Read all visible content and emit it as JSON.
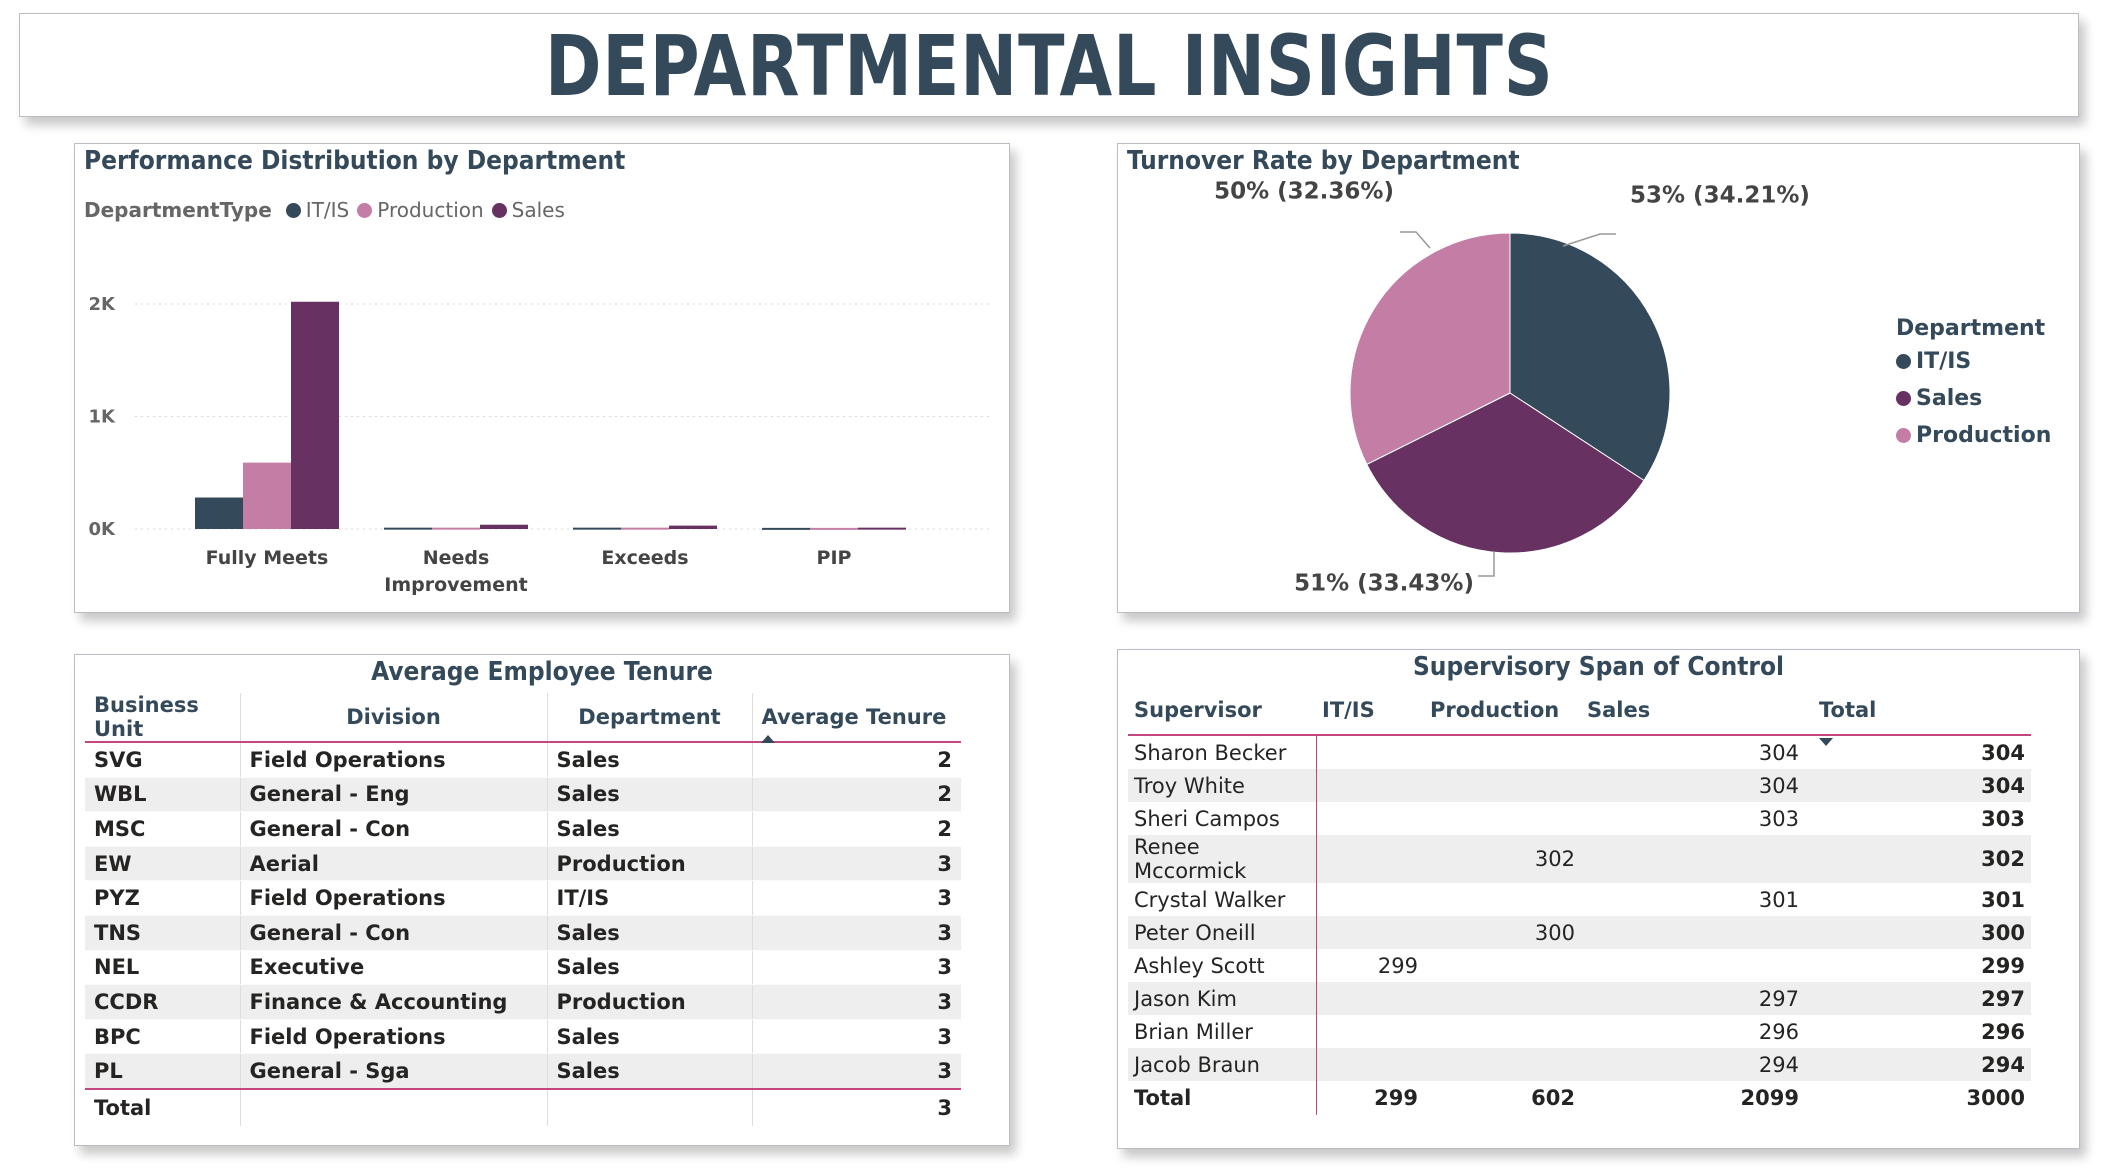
{
  "banner": {
    "title": "DEPARTMENTAL INSIGHTS"
  },
  "colors": {
    "it_is": "#34495a",
    "production": "#c47ea6",
    "sales": "#673261",
    "accent": "#c3467f"
  },
  "performance": {
    "title": "Performance Distribution by Department",
    "legend_title": "DepartmentType",
    "legend": [
      "IT/IS",
      "Production",
      "Sales"
    ],
    "chart_data": {
      "type": "bar",
      "categories": [
        [
          "Fully Meets"
        ],
        [
          "Needs",
          "Improvement"
        ],
        [
          "Exceeds"
        ],
        [
          "PIP"
        ]
      ],
      "series": [
        {
          "name": "IT/IS",
          "values": [
            280,
            12,
            12,
            10
          ]
        },
        {
          "name": "Production",
          "values": [
            590,
            12,
            12,
            10
          ]
        },
        {
          "name": "Sales",
          "values": [
            2020,
            38,
            30,
            12
          ]
        }
      ],
      "ylim": [
        0,
        2000
      ],
      "yticks": [
        {
          "v": 0,
          "label": "0K"
        },
        {
          "v": 1000,
          "label": "1K"
        },
        {
          "v": 2000,
          "label": "2K"
        }
      ],
      "grid": true,
      "legend_position": "top-left"
    }
  },
  "turnover": {
    "title": "Turnover Rate by Department",
    "legend_title": "Department",
    "legend": [
      "IT/IS",
      "Sales",
      "Production"
    ],
    "chart_data": {
      "type": "pie",
      "slices": [
        {
          "name": "IT/IS",
          "value": 34.21,
          "label": "53% (34.21%)"
        },
        {
          "name": "Sales",
          "value": 33.43,
          "label": "51% (33.43%)"
        },
        {
          "name": "Production",
          "value": 32.36,
          "label": "50% (32.36%)"
        }
      ],
      "legend_position": "right"
    }
  },
  "tenure": {
    "title": "Average Employee Tenure",
    "columns": [
      "Business Unit",
      "Division",
      "Department",
      "Average Tenure"
    ],
    "rows": [
      [
        "SVG",
        "Field Operations",
        "Sales",
        "2"
      ],
      [
        "WBL",
        "General - Eng",
        "Sales",
        "2"
      ],
      [
        "MSC",
        "General - Con",
        "Sales",
        "2"
      ],
      [
        "EW",
        "Aerial",
        "Production",
        "3"
      ],
      [
        "PYZ",
        "Field Operations",
        "IT/IS",
        "3"
      ],
      [
        "TNS",
        "General - Con",
        "Sales",
        "3"
      ],
      [
        "NEL",
        "Executive",
        "Sales",
        "3"
      ],
      [
        "CCDR",
        "Finance & Accounting",
        "Production",
        "3"
      ],
      [
        "BPC",
        "Field Operations",
        "Sales",
        "3"
      ],
      [
        "PL",
        "General - Sga",
        "Sales",
        "3"
      ]
    ],
    "total_label": "Total",
    "total_value": "3"
  },
  "span": {
    "title": "Supervisory Span of Control",
    "columns": [
      "Supervisor",
      "IT/IS",
      "Production",
      "Sales",
      "Total"
    ],
    "rows": [
      [
        "Sharon Becker",
        "",
        "",
        "304",
        "304"
      ],
      [
        "Troy White",
        "",
        "",
        "304",
        "304"
      ],
      [
        "Sheri Campos",
        "",
        "",
        "303",
        "303"
      ],
      [
        "Renee Mccormick",
        "",
        "302",
        "",
        "302"
      ],
      [
        "Crystal Walker",
        "",
        "",
        "301",
        "301"
      ],
      [
        "Peter Oneill",
        "",
        "300",
        "",
        "300"
      ],
      [
        "Ashley Scott",
        "299",
        "",
        "",
        "299"
      ],
      [
        "Jason Kim",
        "",
        "",
        "297",
        "297"
      ],
      [
        "Brian Miller",
        "",
        "",
        "296",
        "296"
      ],
      [
        "Jacob Braun",
        "",
        "",
        "294",
        "294"
      ]
    ],
    "totals": [
      "Total",
      "299",
      "602",
      "2099",
      "3000"
    ]
  }
}
